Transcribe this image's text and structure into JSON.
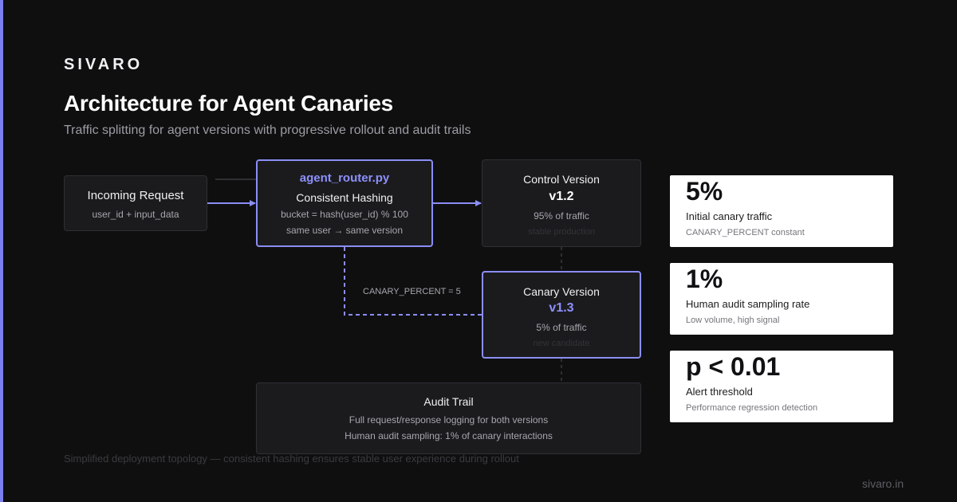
{
  "brand": "SIVARO",
  "title": "Architecture for Agent Canaries",
  "subtitle": "Traffic splitting for agent versions with progressive rollout and audit trails",
  "nodes": {
    "incoming": {
      "title": "Incoming Request",
      "sub": "user_id + input_data"
    },
    "router": {
      "file": "agent_router.py",
      "title": "Consistent Hashing",
      "line1": "bucket = hash(user_id) % 100",
      "line2": "same user → same version"
    },
    "control": {
      "title": "Control Version",
      "version": "v1.2",
      "traffic": "95% of traffic",
      "note": "stable production"
    },
    "canary": {
      "title": "Canary Version",
      "version": "v1.3",
      "traffic": "5% of traffic",
      "note": "new candidate"
    },
    "audit": {
      "title": "Audit Trail",
      "line1": "Full request/response logging for both versions",
      "line2": "Human audit sampling: 1% of canary interactions"
    }
  },
  "edge_label": "CANARY_PERCENT = 5",
  "footnote": "Simplified deployment topology — consistent hashing ensures stable user experience during rollout",
  "stats": [
    {
      "value": "5%",
      "label": "Initial canary traffic",
      "caption": "CANARY_PERCENT constant"
    },
    {
      "value": "1%",
      "label": "Human audit sampling rate",
      "caption": "Low volume, high signal"
    },
    {
      "value": "p < 0.01",
      "label": "Alert threshold",
      "caption": "Performance regression detection"
    }
  ],
  "site": "sivaro.in",
  "colors": {
    "accent": "#7c7ff0",
    "background": "#0f0f10",
    "card": "#ffffff"
  }
}
